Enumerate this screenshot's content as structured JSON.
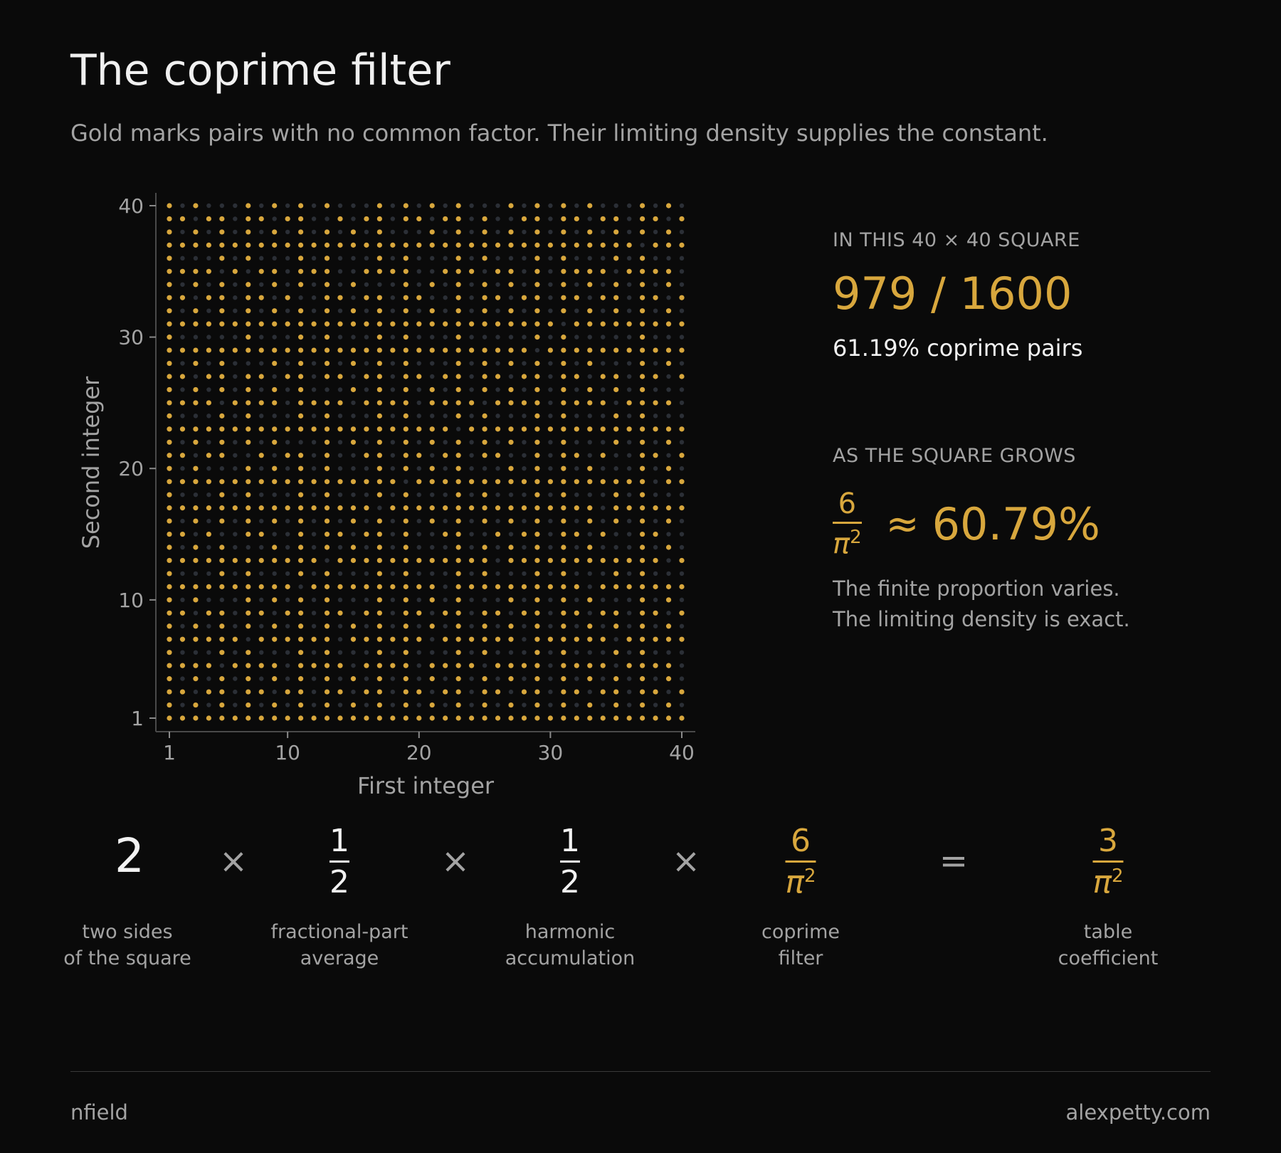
{
  "header": {
    "title": "The coprime filter",
    "subtitle": "Gold marks pairs with no common factor. Their limiting density supplies the constant."
  },
  "colors": {
    "background": "#0a0a0a",
    "coprime": "#d8a73d",
    "non_coprime": "#2b2f36",
    "text_muted": "#a3a3a3"
  },
  "chart_data": {
    "type": "scatter",
    "xlabel": "First integer",
    "ylabel": "Second integer",
    "n": 40,
    "xlim": [
      1,
      40
    ],
    "ylim": [
      1,
      40
    ],
    "xticks": [
      1,
      10,
      20,
      30,
      40
    ],
    "yticks": [
      1,
      10,
      20,
      30,
      40
    ],
    "series": [
      {
        "name": "coprime",
        "rule": "gcd(x, y) = 1",
        "color": "#d8a73d"
      },
      {
        "name": "not coprime",
        "rule": "gcd(x, y) > 1",
        "color": "#2b2f36"
      }
    ],
    "grid": false
  },
  "stats": {
    "square_label": "IN THIS 40 × 40 SQUARE",
    "ratio": "979 / 1600",
    "percent_line": "61.19% coprime pairs",
    "grows_label": "AS THE SQUARE GROWS",
    "limit_num": "6",
    "limit_den": "π",
    "limit_exp": "2",
    "approx": "≈",
    "limit_pct": "60.79%",
    "note_line1": "The finite proportion varies.",
    "note_line2": "The limiting density is exact."
  },
  "equation": {
    "factor1": "2",
    "times": "×",
    "equals": "=",
    "factor2_num": "1",
    "factor2_den": "2",
    "factor3_num": "1",
    "factor3_den": "2",
    "factor4_num": "6",
    "factor4_den": "π",
    "factor4_exp": "2",
    "result_num": "3",
    "result_den": "π",
    "result_exp": "2",
    "captions": {
      "c1_line1": "two sides",
      "c1_line2": "of the square",
      "c2_line1": "fractional-part",
      "c2_line2": "average",
      "c3_line1": "harmonic",
      "c3_line2": "accumulation",
      "c4_line1": "coprime",
      "c4_line2": "filter",
      "c5_line1": "table",
      "c5_line2": "coefficient"
    }
  },
  "footer": {
    "left": "nfield",
    "right": "alexpetty.com"
  }
}
